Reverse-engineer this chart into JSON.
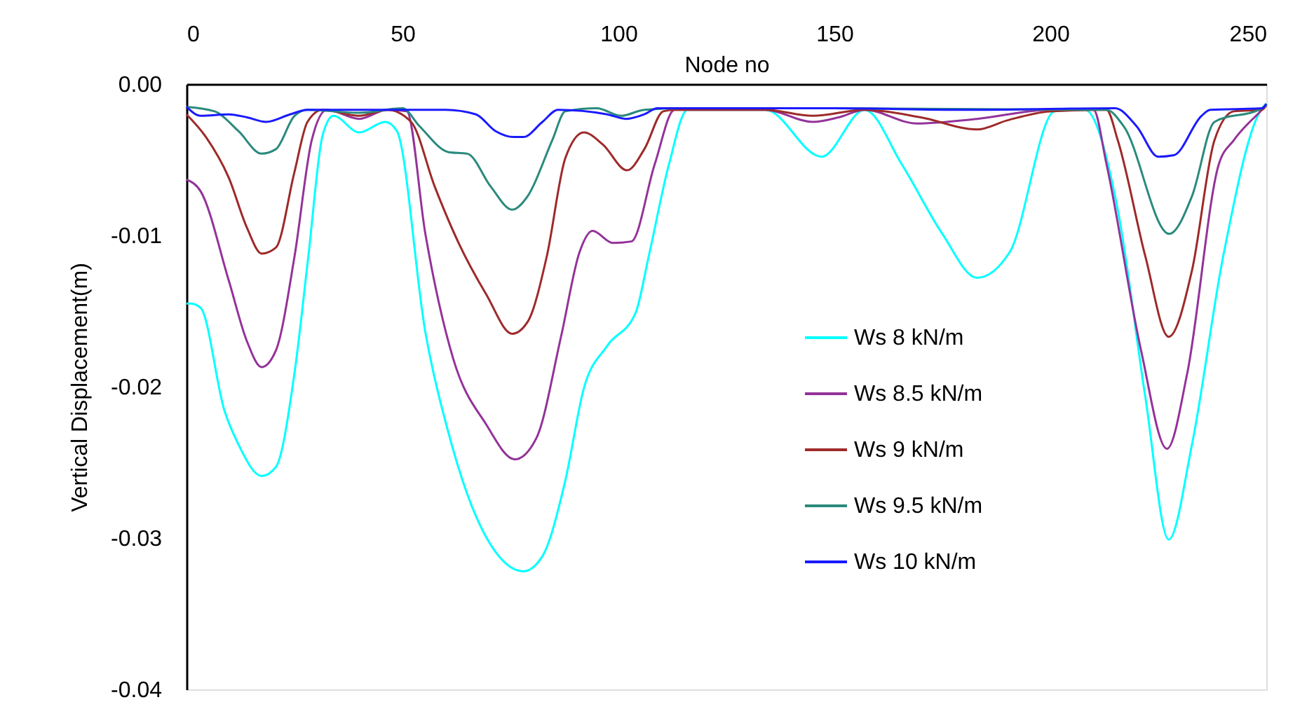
{
  "chart_data": {
    "type": "line",
    "xlabel": "Node no",
    "ylabel": "Vertical Displacement(m)",
    "xlim": [
      0,
      250
    ],
    "xticks": [
      0,
      50,
      100,
      150,
      200,
      250
    ],
    "ylim": [
      -0.04,
      0
    ],
    "yticks": [
      {
        "value": 0,
        "label": "0.00"
      },
      {
        "value": -0.01,
        "label": "-0.01"
      },
      {
        "value": -0.02,
        "label": "-0.02"
      },
      {
        "value": -0.03,
        "label": "-0.03"
      },
      {
        "value": -0.04,
        "label": "-0.04"
      }
    ],
    "grid": false,
    "legend": "right",
    "marker": "none",
    "line_style": "solid",
    "series": [
      {
        "name": "Ws 8 kN/m",
        "color": "#00ffff",
        "x": [
          0,
          1,
          3.3,
          8.8,
          12,
          17.4,
          20.7,
          25,
          28.2,
          31.5,
          34,
          40,
          46,
          48.7,
          55.3,
          60.7,
          65,
          71.5,
          78,
          82.4,
          87.7,
          92,
          97.4,
          104,
          107,
          111.7,
          116,
          134,
          147,
          157,
          165.6,
          175,
          183,
          190.6,
          201,
          208,
          215.6,
          222,
          227.4,
          232.8,
          240,
          249,
          250
        ],
        "values": [
          -0.0145,
          -0.0145,
          -0.0148,
          -0.0216,
          -0.0238,
          -0.0259,
          -0.0253,
          -0.0191,
          -0.0114,
          -0.0034,
          -0.0021,
          -0.0032,
          -0.0025,
          -0.0031,
          -0.0164,
          -0.0231,
          -0.0271,
          -0.0309,
          -0.0322,
          -0.0312,
          -0.0262,
          -0.0201,
          -0.0173,
          -0.0151,
          -0.0114,
          -0.0053,
          -0.0017,
          -0.0017,
          -0.0048,
          -0.0017,
          -0.0053,
          -0.0099,
          -0.0128,
          -0.0111,
          -0.0018,
          -0.0017,
          -0.0083,
          -0.0207,
          -0.0301,
          -0.0238,
          -0.0114,
          -0.0016,
          -0.0013
        ]
      },
      {
        "name": "Ws 8.5 kN/m",
        "color": "#943399",
        "x": [
          0,
          3.3,
          9.8,
          14,
          17.4,
          20.7,
          25,
          29,
          32.5,
          40,
          46.5,
          51,
          55.3,
          61.8,
          69.4,
          76,
          81,
          86.7,
          91,
          94,
          98.7,
          103,
          108.4,
          113,
          134,
          145,
          151,
          157,
          169,
          183,
          200,
          210,
          213,
          221,
          227,
          231.7,
          239,
          242.5,
          249,
          250
        ],
        "values": [
          -0.0063,
          -0.0071,
          -0.013,
          -0.017,
          -0.0187,
          -0.0176,
          -0.0114,
          -0.0037,
          -0.0017,
          -0.0023,
          -0.0017,
          -0.0018,
          -0.0099,
          -0.0182,
          -0.0225,
          -0.0248,
          -0.0234,
          -0.0167,
          -0.0111,
          -0.0097,
          -0.0105,
          -0.0104,
          -0.0053,
          -0.0017,
          -0.0017,
          -0.0025,
          -0.0022,
          -0.0017,
          -0.0026,
          -0.0023,
          -0.0017,
          -0.0017,
          -0.0053,
          -0.0176,
          -0.0241,
          -0.0191,
          -0.0053,
          -0.0037,
          -0.0017,
          -0.0014
        ]
      },
      {
        "name": "Ws 9  kN/m",
        "color": "#9e2a2a",
        "x": [
          0,
          4.5,
          9.8,
          14,
          17.4,
          20.7,
          25,
          28,
          31.5,
          40,
          46.5,
          52,
          57.5,
          63,
          69.4,
          75.4,
          79,
          83.4,
          87.7,
          92,
          96.4,
          102,
          106,
          110.4,
          113,
          134,
          145,
          157,
          170,
          183,
          190,
          200,
          213,
          215.6,
          222,
          227.4,
          232.8,
          238,
          242.5,
          249,
          250
        ],
        "values": [
          -0.002,
          -0.0035,
          -0.0062,
          -0.0095,
          -0.0112,
          -0.0108,
          -0.0058,
          -0.0025,
          -0.0017,
          -0.0021,
          -0.0017,
          -0.0025,
          -0.0068,
          -0.0105,
          -0.0139,
          -0.0165,
          -0.0157,
          -0.0114,
          -0.0049,
          -0.0032,
          -0.004,
          -0.0057,
          -0.0043,
          -0.0018,
          -0.0017,
          -0.0017,
          -0.0021,
          -0.0017,
          -0.0022,
          -0.003,
          -0.0024,
          -0.0018,
          -0.0017,
          -0.0037,
          -0.0114,
          -0.0167,
          -0.0123,
          -0.0037,
          -0.0018,
          -0.0017,
          -0.0014
        ]
      },
      {
        "name": "Ws 9.5 kN/m",
        "color": "#2a8a7d",
        "x": [
          0,
          6.5,
          12,
          17.4,
          20.7,
          25,
          28,
          40,
          50,
          54,
          60.7,
          65,
          70.5,
          75.4,
          79,
          84.7,
          87.7,
          95,
          100.6,
          106,
          115,
          150,
          213,
          217,
          227.5,
          232.8,
          238,
          249,
          250
        ],
        "values": [
          -0.0015,
          -0.0018,
          -0.0031,
          -0.0046,
          -0.0043,
          -0.0021,
          -0.0017,
          -0.0019,
          -0.0016,
          -0.0028,
          -0.0045,
          -0.0046,
          -0.0068,
          -0.0083,
          -0.0074,
          -0.0037,
          -0.0018,
          -0.0016,
          -0.0021,
          -0.0017,
          -0.0016,
          -0.0016,
          -0.0017,
          -0.0028,
          -0.0099,
          -0.0074,
          -0.0025,
          -0.0016,
          -0.0014
        ]
      },
      {
        "name": "Ws 10 kN/m",
        "color": "#1a1aff",
        "x": [
          0,
          3.3,
          9.8,
          14,
          18.4,
          24,
          28,
          40,
          60,
          67,
          71.5,
          75.8,
          78,
          82.4,
          86,
          97.4,
          101.8,
          106,
          109,
          150,
          180,
          215,
          220,
          225,
          228.6,
          235,
          237,
          249,
          250
        ],
        "values": [
          -0.0015,
          -0.0021,
          -0.002,
          -0.0022,
          -0.0025,
          -0.002,
          -0.0017,
          -0.0017,
          -0.0017,
          -0.002,
          -0.0031,
          -0.0035,
          -0.0035,
          -0.0025,
          -0.0017,
          -0.002,
          -0.0023,
          -0.002,
          -0.0016,
          -0.0016,
          -0.0017,
          -0.0016,
          -0.0028,
          -0.0048,
          -0.0047,
          -0.0021,
          -0.0017,
          -0.0016,
          -0.0013
        ]
      }
    ]
  }
}
